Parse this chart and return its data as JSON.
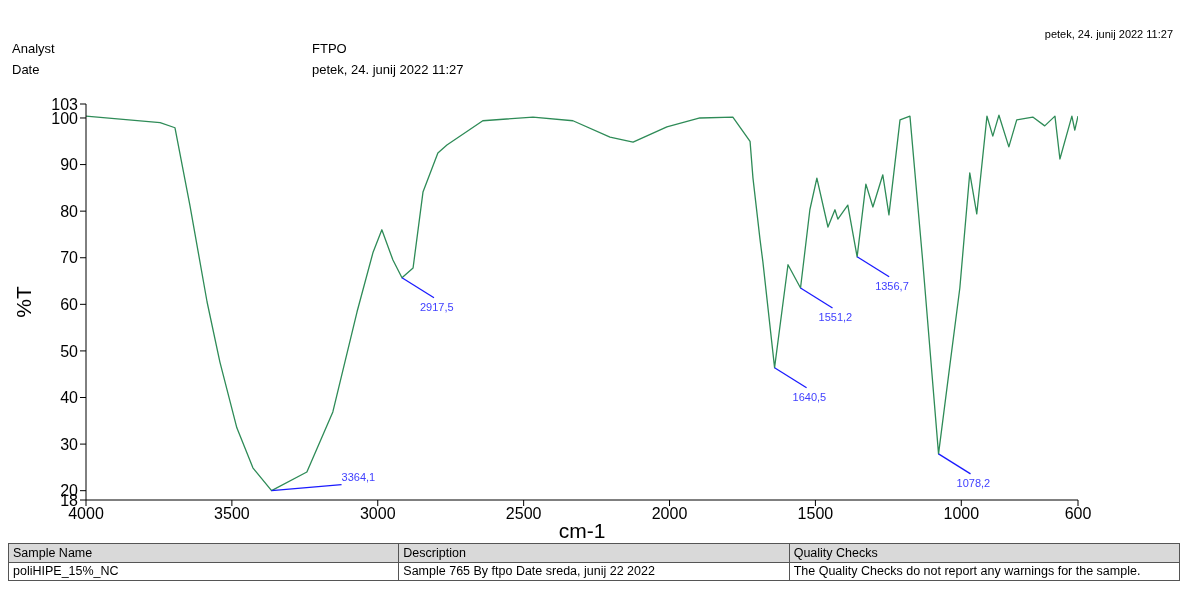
{
  "chart_data": {
    "type": "line",
    "xlabel": "cm-1",
    "ylabel": "%T",
    "xlim": [
      4000,
      600
    ],
    "xticks": [
      4000,
      3500,
      3000,
      2500,
      2000,
      1500,
      1000,
      600
    ],
    "ylim": [
      18,
      103
    ],
    "yticks": [
      18,
      20,
      30,
      40,
      50,
      60,
      70,
      80,
      90,
      100,
      103
    ],
    "marker": "none",
    "line_style": "solid",
    "series": [
      {
        "color": "#2e8b57",
        "x": [
          4000,
          3746,
          3695,
          3644,
          3585,
          3541,
          3483,
          3428,
          3364,
          3243,
          3154,
          3071,
          3016,
          2986,
          2948,
          2917,
          2879,
          2845,
          2794,
          2763,
          2640,
          2468,
          2331,
          2204,
          2125,
          2009,
          1896,
          1783,
          1724,
          1714,
          1690,
          1680,
          1640,
          1594,
          1551,
          1519,
          1495,
          1457,
          1433,
          1423,
          1389,
          1357,
          1327,
          1303,
          1269,
          1248,
          1210,
          1176,
          1132,
          1078,
          1039,
          1005,
          971,
          947,
          912,
          892,
          871,
          837,
          810,
          755,
          714,
          679,
          662,
          621,
          611,
          600
        ],
        "values": [
          100.4,
          99,
          97.9,
          81.3,
          60.5,
          47.6,
          33.5,
          24.9,
          20,
          24,
          36.9,
          58.4,
          71.2,
          76,
          69.5,
          65.7,
          67.8,
          84.1,
          92.5,
          94.2,
          99.4,
          100.2,
          99.4,
          95.9,
          94.8,
          98.1,
          100,
          100.2,
          95,
          87.1,
          74,
          69.1,
          46.4,
          68.5,
          63.5,
          80.3,
          87.1,
          76.6,
          80.3,
          78.3,
          81.3,
          70.2,
          85.8,
          80.9,
          87.8,
          79.2,
          99.6,
          100.4,
          69.1,
          27.9,
          47,
          63.5,
          88.2,
          79.4,
          100.4,
          96.1,
          100.6,
          93.8,
          99.6,
          100.2,
          98.3,
          100.4,
          91.2,
          100.4,
          97.4,
          100.4
        ]
      }
    ],
    "annotations": [
      {
        "text": "3364,1",
        "x": 3364,
        "y": 20
      },
      {
        "text": "2917,5",
        "x": 2917,
        "y": 65.7
      },
      {
        "text": "1640,5",
        "x": 1640,
        "y": 46.4
      },
      {
        "text": "1551,2",
        "x": 1551,
        "y": 63.5
      },
      {
        "text": "1356,7",
        "x": 1357,
        "y": 70.2
      },
      {
        "text": "1078,2",
        "x": 1078,
        "y": 27.9
      },
      "petek, 24. junij 2022 11:27",
      "Analyst",
      "FTPO",
      "Date",
      "petek, 24. junij 2022 11:27",
      "Sample Name",
      "Description",
      "Quality Checks",
      "poliHIPE_15%_NC",
      "Sample 765 By ftpo Date sreda, junij 22 2022",
      "The Quality Checks do not report any warnings for the sample."
    ]
  }
}
